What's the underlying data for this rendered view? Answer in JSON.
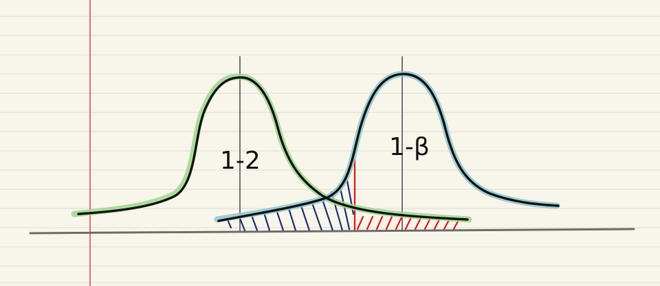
{
  "labels": {
    "left_region": "1-2",
    "right_region": "1-β"
  },
  "colors": {
    "paper": "#f8f5ea",
    "ruled_line": "#dcdcdc",
    "margin_line": "#d0474f",
    "ink": "#111111",
    "axis": "#6b6b6b",
    "center_line": "#707070",
    "left_curve_highlight": "#9fd592",
    "right_curve_highlight": "#8fc6cf",
    "blue_hatch": "#1b2d70",
    "red_hatch": "#e11414"
  },
  "icons": {
    "left_curve": "bell-curve",
    "right_curve": "bell-curve"
  }
}
